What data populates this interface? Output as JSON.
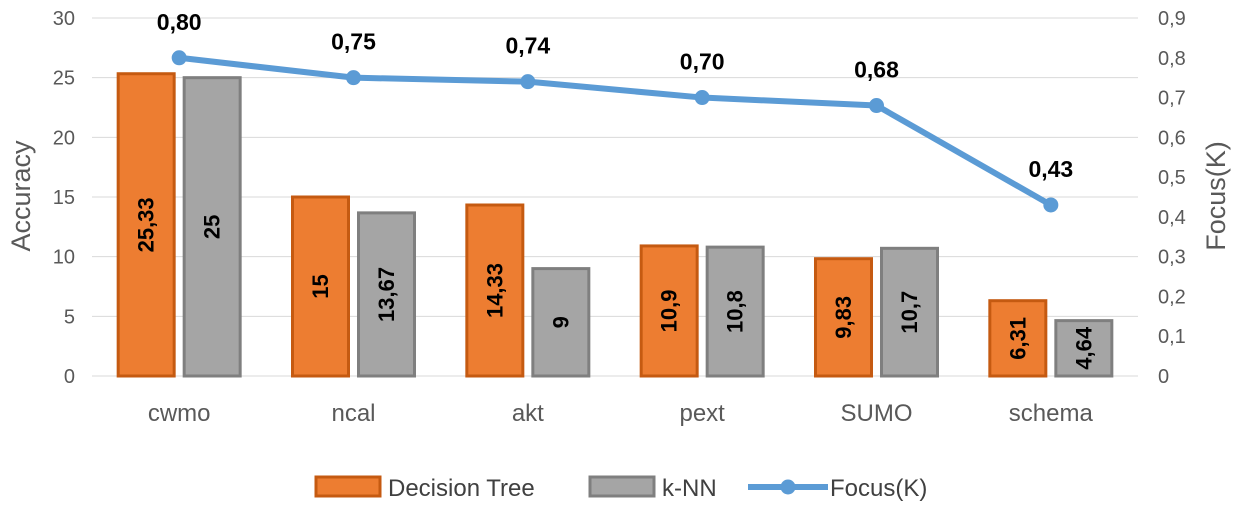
{
  "chart_data": {
    "type": "bar",
    "categories": [
      "cwmo",
      "ncal",
      "akt",
      "pext",
      "SUMO",
      "schema"
    ],
    "series": [
      {
        "name": "Decision Tree",
        "type": "bar",
        "axis": "left",
        "color": "#ED7D31",
        "stroke": "#C55A11",
        "values": [
          25.33,
          15,
          14.33,
          10.9,
          9.83,
          6.31
        ],
        "labels": [
          "25,33",
          "15",
          "14,33",
          "10,9",
          "9,83",
          "6,31"
        ]
      },
      {
        "name": "k-NN",
        "type": "bar",
        "axis": "left",
        "color": "#A5A5A5",
        "stroke": "#7F7F7F",
        "values": [
          25,
          13.67,
          9,
          10.8,
          10.7,
          4.64
        ],
        "labels": [
          "25",
          "13,67",
          "9",
          "10,8",
          "10,7",
          "4,64"
        ]
      },
      {
        "name": "Focus(K)",
        "type": "line",
        "axis": "right",
        "color": "#5B9BD5",
        "values": [
          0.8,
          0.75,
          0.74,
          0.7,
          0.68,
          0.43
        ],
        "labels": [
          "0,80",
          "0,75",
          "0,74",
          "0,70",
          "0,68",
          "0,43"
        ]
      }
    ],
    "ylabel": "Accuracy",
    "ylabel_right": "Focus(K)",
    "ylim": [
      0,
      30
    ],
    "ylim_right": [
      0,
      0.9
    ],
    "yticks": [
      "0",
      "5",
      "10",
      "15",
      "20",
      "25",
      "30"
    ],
    "yticks_right": [
      "0",
      "0,1",
      "0,2",
      "0,3",
      "0,4",
      "0,5",
      "0,6",
      "0,7",
      "0,8",
      "0,9"
    ],
    "grid": true,
    "legend_position": "bottom"
  }
}
